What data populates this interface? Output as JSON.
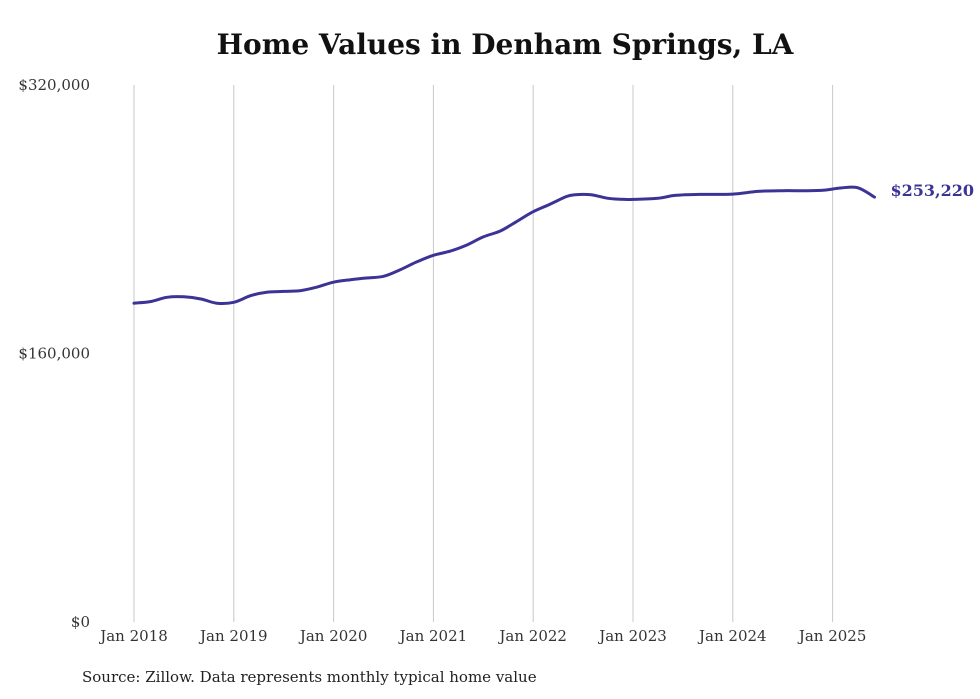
{
  "chart_data": {
    "type": "line",
    "title": "Home Values in Denham Springs, LA",
    "source_note": "Source: Zillow. Data represents monthly typical home value",
    "series_color": "#3c3396",
    "grid_color": "#c8c8c8",
    "ylim": [
      0,
      320000
    ],
    "y_ticks": [
      {
        "value": 0,
        "label": "$0"
      },
      {
        "value": 160000,
        "label": "$160,000"
      },
      {
        "value": 320000,
        "label": "$320,000"
      }
    ],
    "x_ticks": [
      {
        "value": 2018.0,
        "label": "Jan 2018"
      },
      {
        "value": 2019.0,
        "label": "Jan 2019"
      },
      {
        "value": 2020.0,
        "label": "Jan 2020"
      },
      {
        "value": 2021.0,
        "label": "Jan 2021"
      },
      {
        "value": 2022.0,
        "label": "Jan 2022"
      },
      {
        "value": 2023.0,
        "label": "Jan 2023"
      },
      {
        "value": 2024.0,
        "label": "Jan 2024"
      },
      {
        "value": 2025.0,
        "label": "Jan 2025"
      }
    ],
    "x_domain": [
      2018.0,
      2025.42
    ],
    "end_label": "$253,220",
    "series": [
      {
        "x": [
          2018.0,
          2018.17,
          2018.33,
          2018.5,
          2018.67,
          2018.83,
          2019.0,
          2019.17,
          2019.33,
          2019.5,
          2019.67,
          2019.83,
          2020.0,
          2020.17,
          2020.33,
          2020.5,
          2020.67,
          2020.83,
          2021.0,
          2021.17,
          2021.33,
          2021.5,
          2021.67,
          2021.83,
          2022.0,
          2022.17,
          2022.33,
          2022.42,
          2022.58,
          2022.75,
          2022.92,
          2023.0,
          2023.25,
          2023.42,
          2023.67,
          2024.0,
          2024.25,
          2024.5,
          2024.75,
          2024.92,
          2025.08,
          2025.25,
          2025.42
        ],
        "values": [
          190000,
          191000,
          193500,
          193800,
          192500,
          190000,
          190500,
          194500,
          196500,
          197000,
          197500,
          199500,
          202500,
          204000,
          205000,
          206000,
          210000,
          214500,
          218500,
          221000,
          224500,
          229500,
          233000,
          238500,
          244500,
          249000,
          253500,
          254600,
          254600,
          252500,
          251800,
          251800,
          252500,
          254200,
          254800,
          255000,
          256600,
          257000,
          257000,
          257400,
          258600,
          258800,
          253220
        ]
      }
    ]
  }
}
